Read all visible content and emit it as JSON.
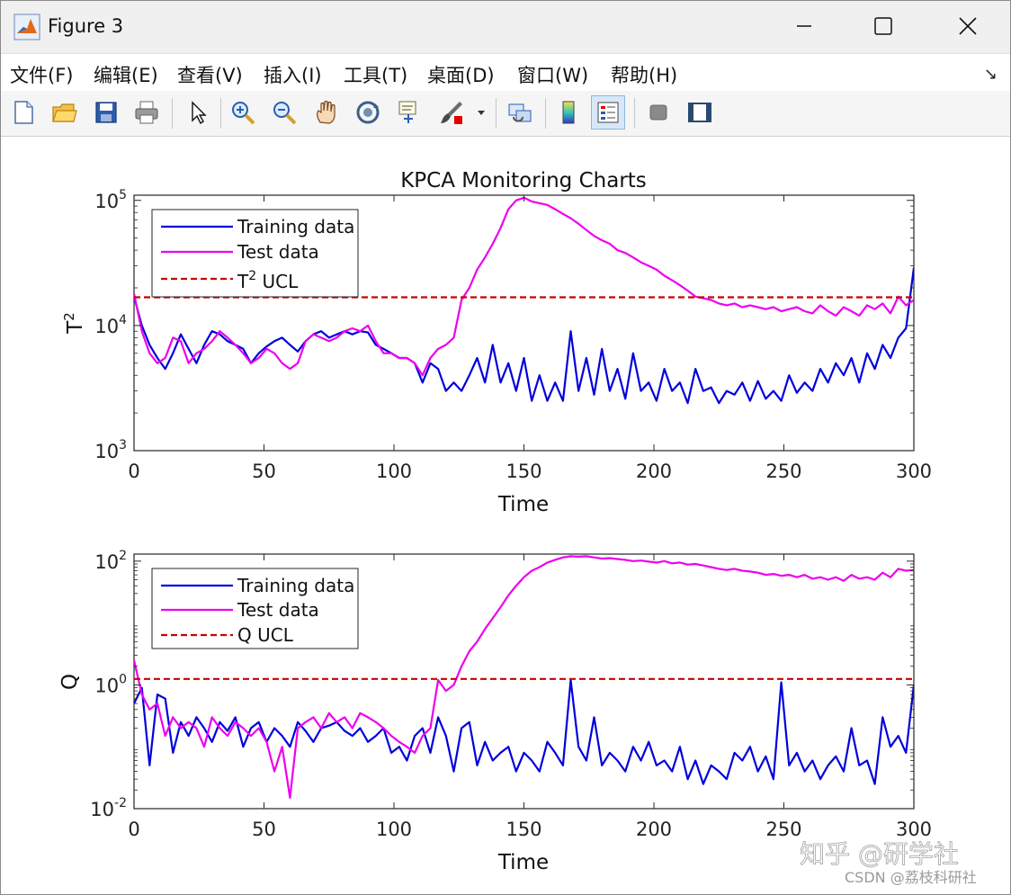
{
  "window": {
    "title": "Figure 3",
    "icon": "matlab-icon",
    "controls": [
      "minimize-icon",
      "maximize-icon",
      "close-icon"
    ]
  },
  "menu": [
    "文件(F)",
    "编辑(E)",
    "查看(V)",
    "插入(I)",
    "工具(T)",
    "桌面(D)",
    "窗口(W)",
    "帮助(H)"
  ],
  "toolbar": [
    "new-figure-icon",
    "open-icon",
    "save-icon",
    "print-icon",
    "pointer-icon",
    "zoom-in-icon",
    "zoom-out-icon",
    "pan-icon",
    "rotate-icon",
    "data-cursor-icon",
    "brush-icon",
    "link-icon",
    "colorbar-icon",
    "legend-icon",
    "hide-plot-tools-icon",
    "show-plot-tools-icon"
  ],
  "colors": {
    "training": "#0000dd",
    "test": "#ee00ee",
    "ucl": "#cc0000"
  },
  "watermark": {
    "main": "知乎 @研学社",
    "sub": "CSDN @荔枝科研社"
  },
  "chart_data": [
    {
      "type": "line",
      "title": "KPCA Monitoring Charts",
      "xlabel": "Time",
      "ylabel": "T^2",
      "ylabel_base": "T",
      "ylabel_sup": "2",
      "yscale": "log",
      "xlim": [
        0,
        300
      ],
      "ylim": [
        1000,
        110000
      ],
      "xticks": [
        0,
        50,
        100,
        150,
        200,
        250,
        300
      ],
      "yticks": [
        {
          "base": "10",
          "exp": "3",
          "value": 1000
        },
        {
          "base": "10",
          "exp": "4",
          "value": 10000
        },
        {
          "base": "10",
          "exp": "5",
          "value": 100000
        }
      ],
      "legend": "top-left",
      "series": [
        {
          "name": "Training data",
          "style": "solid",
          "x": [
            0,
            3,
            6,
            9,
            12,
            15,
            18,
            21,
            24,
            27,
            30,
            33,
            36,
            39,
            42,
            45,
            48,
            51,
            54,
            57,
            60,
            63,
            66,
            69,
            72,
            75,
            78,
            81,
            84,
            87,
            90,
            93,
            96,
            99,
            102,
            105,
            108,
            111,
            114,
            117,
            120,
            123,
            126,
            129,
            132,
            135,
            138,
            141,
            144,
            147,
            150,
            153,
            156,
            159,
            162,
            165,
            168,
            171,
            174,
            177,
            180,
            183,
            186,
            189,
            192,
            195,
            198,
            201,
            204,
            207,
            210,
            213,
            216,
            219,
            222,
            225,
            228,
            231,
            234,
            237,
            240,
            243,
            246,
            249,
            252,
            255,
            258,
            261,
            264,
            267,
            270,
            273,
            276,
            279,
            282,
            285,
            288,
            291,
            294,
            297,
            300
          ],
          "values": [
            17000,
            10000,
            7000,
            5500,
            4500,
            6000,
            8500,
            6500,
            5000,
            7000,
            9000,
            8500,
            7500,
            7000,
            6500,
            5000,
            6000,
            6800,
            7500,
            8000,
            7000,
            6200,
            7500,
            8500,
            9000,
            8000,
            8500,
            9000,
            8500,
            9000,
            8800,
            7000,
            6500,
            6000,
            5500,
            5500,
            5000,
            3500,
            5000,
            4500,
            3000,
            3500,
            3000,
            4000,
            5500,
            3500,
            7000,
            3500,
            5000,
            3000,
            5500,
            2500,
            4000,
            2500,
            3500,
            2500,
            9000,
            3000,
            5500,
            2800,
            6500,
            3000,
            4500,
            2600,
            6000,
            3000,
            3500,
            2500,
            4500,
            3000,
            3500,
            2400,
            4500,
            3000,
            3200,
            2400,
            3000,
            2800,
            3500,
            2500,
            3600,
            2600,
            3000,
            2500,
            4000,
            2900,
            3500,
            3000,
            4500,
            3500,
            5000,
            4000,
            5500,
            3500,
            6000,
            4500,
            7000,
            5500,
            8000,
            9500,
            29000
          ]
        },
        {
          "name": "Test data",
          "style": "solid",
          "x": [
            0,
            3,
            6,
            9,
            12,
            15,
            18,
            21,
            24,
            27,
            30,
            33,
            36,
            39,
            42,
            45,
            48,
            51,
            54,
            57,
            60,
            63,
            66,
            69,
            72,
            75,
            78,
            81,
            84,
            87,
            90,
            93,
            96,
            99,
            102,
            105,
            108,
            111,
            114,
            117,
            120,
            123,
            126,
            129,
            132,
            135,
            138,
            141,
            144,
            147,
            150,
            153,
            156,
            159,
            162,
            165,
            168,
            171,
            174,
            177,
            180,
            183,
            186,
            189,
            192,
            195,
            198,
            201,
            204,
            207,
            210,
            213,
            216,
            219,
            222,
            225,
            228,
            231,
            234,
            237,
            240,
            243,
            246,
            249,
            252,
            255,
            258,
            261,
            264,
            267,
            270,
            273,
            276,
            279,
            282,
            285,
            288,
            291,
            294,
            297,
            300
          ],
          "values": [
            18000,
            9000,
            6000,
            5000,
            5500,
            8000,
            7500,
            5000,
            6000,
            6500,
            7500,
            9000,
            8000,
            7000,
            6000,
            5000,
            5500,
            6500,
            6000,
            5000,
            4500,
            5000,
            7500,
            8500,
            8000,
            7500,
            8000,
            9000,
            9500,
            9000,
            10000,
            7500,
            6000,
            6000,
            5500,
            5500,
            5000,
            4000,
            5500,
            6500,
            7000,
            8000,
            16000,
            20000,
            28000,
            35000,
            45000,
            60000,
            85000,
            100000,
            105000,
            98000,
            95000,
            92000,
            85000,
            78000,
            72000,
            65000,
            58000,
            52000,
            48000,
            45000,
            40000,
            38000,
            35000,
            32000,
            30000,
            28000,
            25000,
            23000,
            21000,
            19000,
            17000,
            16500,
            16000,
            15000,
            14500,
            15000,
            14000,
            14500,
            14000,
            13500,
            14000,
            13000,
            13500,
            14000,
            13000,
            12500,
            14500,
            13000,
            12000,
            14000,
            13000,
            12000,
            14500,
            13500,
            15000,
            12500,
            17000,
            14500,
            16000
          ]
        },
        {
          "name": "T^2 UCL",
          "name_base": "T",
          "name_sup": "2",
          "name_rest": " UCL",
          "style": "dashed",
          "x": [
            0,
            300
          ],
          "values": [
            16800,
            16800
          ]
        }
      ]
    },
    {
      "type": "line",
      "title": "",
      "xlabel": "Time",
      "ylabel": "Q",
      "yscale": "log",
      "xlim": [
        0,
        300
      ],
      "ylim": [
        0.01,
        130
      ],
      "xticks": [
        0,
        50,
        100,
        150,
        200,
        250,
        300
      ],
      "yticks": [
        {
          "base": "10",
          "exp": "-2",
          "value": 0.01
        },
        {
          "base": "10",
          "exp": "0",
          "value": 1
        },
        {
          "base": "10",
          "exp": "2",
          "value": 100
        }
      ],
      "legend": "top-left",
      "series": [
        {
          "name": "Training data",
          "style": "solid",
          "x": [
            0,
            3,
            6,
            9,
            12,
            15,
            18,
            21,
            24,
            27,
            30,
            33,
            36,
            39,
            42,
            45,
            48,
            51,
            54,
            57,
            60,
            63,
            66,
            69,
            72,
            75,
            78,
            81,
            84,
            87,
            90,
            93,
            96,
            99,
            102,
            105,
            108,
            111,
            114,
            117,
            120,
            123,
            126,
            129,
            132,
            135,
            138,
            141,
            144,
            147,
            150,
            153,
            156,
            159,
            162,
            165,
            168,
            171,
            174,
            177,
            180,
            183,
            186,
            189,
            192,
            195,
            198,
            201,
            204,
            207,
            210,
            213,
            216,
            219,
            222,
            225,
            228,
            231,
            234,
            237,
            240,
            243,
            246,
            249,
            252,
            255,
            258,
            261,
            264,
            267,
            270,
            273,
            276,
            279,
            282,
            285,
            288,
            291,
            294,
            297,
            300
          ],
          "values": [
            0.5,
            0.9,
            0.05,
            0.7,
            0.6,
            0.08,
            0.25,
            0.15,
            0.3,
            0.2,
            0.12,
            0.25,
            0.18,
            0.3,
            0.1,
            0.2,
            0.25,
            0.12,
            0.2,
            0.15,
            0.1,
            0.25,
            0.18,
            0.12,
            0.2,
            0.22,
            0.25,
            0.18,
            0.15,
            0.2,
            0.12,
            0.15,
            0.2,
            0.08,
            0.1,
            0.06,
            0.15,
            0.2,
            0.08,
            0.3,
            0.15,
            0.04,
            0.2,
            0.25,
            0.05,
            0.12,
            0.06,
            0.08,
            0.1,
            0.04,
            0.08,
            0.06,
            0.04,
            0.12,
            0.08,
            0.05,
            1.2,
            0.1,
            0.06,
            0.3,
            0.05,
            0.08,
            0.06,
            0.04,
            0.1,
            0.06,
            0.12,
            0.05,
            0.06,
            0.04,
            0.1,
            0.03,
            0.06,
            0.025,
            0.05,
            0.04,
            0.03,
            0.08,
            0.06,
            0.1,
            0.04,
            0.07,
            0.03,
            1.1,
            0.05,
            0.08,
            0.04,
            0.06,
            0.03,
            0.05,
            0.07,
            0.04,
            0.2,
            0.05,
            0.06,
            0.025,
            0.3,
            0.1,
            0.15,
            0.08,
            1.0
          ]
        },
        {
          "name": "Test data",
          "style": "solid",
          "x": [
            0,
            3,
            6,
            9,
            12,
            15,
            18,
            21,
            24,
            27,
            30,
            33,
            36,
            39,
            42,
            45,
            48,
            51,
            54,
            57,
            60,
            63,
            66,
            69,
            72,
            75,
            78,
            81,
            84,
            87,
            90,
            93,
            96,
            99,
            102,
            105,
            108,
            111,
            114,
            117,
            120,
            123,
            126,
            129,
            132,
            135,
            138,
            141,
            144,
            147,
            150,
            153,
            156,
            159,
            162,
            165,
            168,
            171,
            174,
            177,
            180,
            183,
            186,
            189,
            192,
            195,
            198,
            201,
            204,
            207,
            210,
            213,
            216,
            219,
            222,
            225,
            228,
            231,
            234,
            237,
            240,
            243,
            246,
            249,
            252,
            255,
            258,
            261,
            264,
            267,
            270,
            273,
            276,
            279,
            282,
            285,
            288,
            291,
            294,
            297,
            300
          ],
          "values": [
            2.5,
            0.7,
            0.4,
            0.5,
            0.15,
            0.3,
            0.2,
            0.25,
            0.2,
            0.1,
            0.3,
            0.2,
            0.15,
            0.25,
            0.2,
            0.15,
            0.2,
            0.12,
            0.04,
            0.1,
            0.015,
            0.2,
            0.25,
            0.3,
            0.2,
            0.35,
            0.25,
            0.3,
            0.2,
            0.35,
            0.3,
            0.25,
            0.2,
            0.15,
            0.12,
            0.1,
            0.08,
            0.15,
            0.2,
            1.2,
            0.8,
            1.0,
            2.0,
            3.5,
            5,
            8,
            12,
            18,
            28,
            40,
            55,
            70,
            80,
            95,
            105,
            115,
            120,
            118,
            120,
            115,
            110,
            112,
            108,
            105,
            100,
            102,
            98,
            95,
            100,
            92,
            95,
            88,
            90,
            85,
            80,
            75,
            72,
            75,
            70,
            68,
            65,
            60,
            62,
            58,
            60,
            55,
            60,
            52,
            55,
            50,
            55,
            48,
            60,
            52,
            55,
            50,
            65,
            55,
            75,
            70,
            72
          ]
        },
        {
          "name": "Q UCL",
          "style": "dashed",
          "x": [
            0,
            300
          ],
          "values": [
            1.25,
            1.25
          ]
        }
      ]
    }
  ]
}
